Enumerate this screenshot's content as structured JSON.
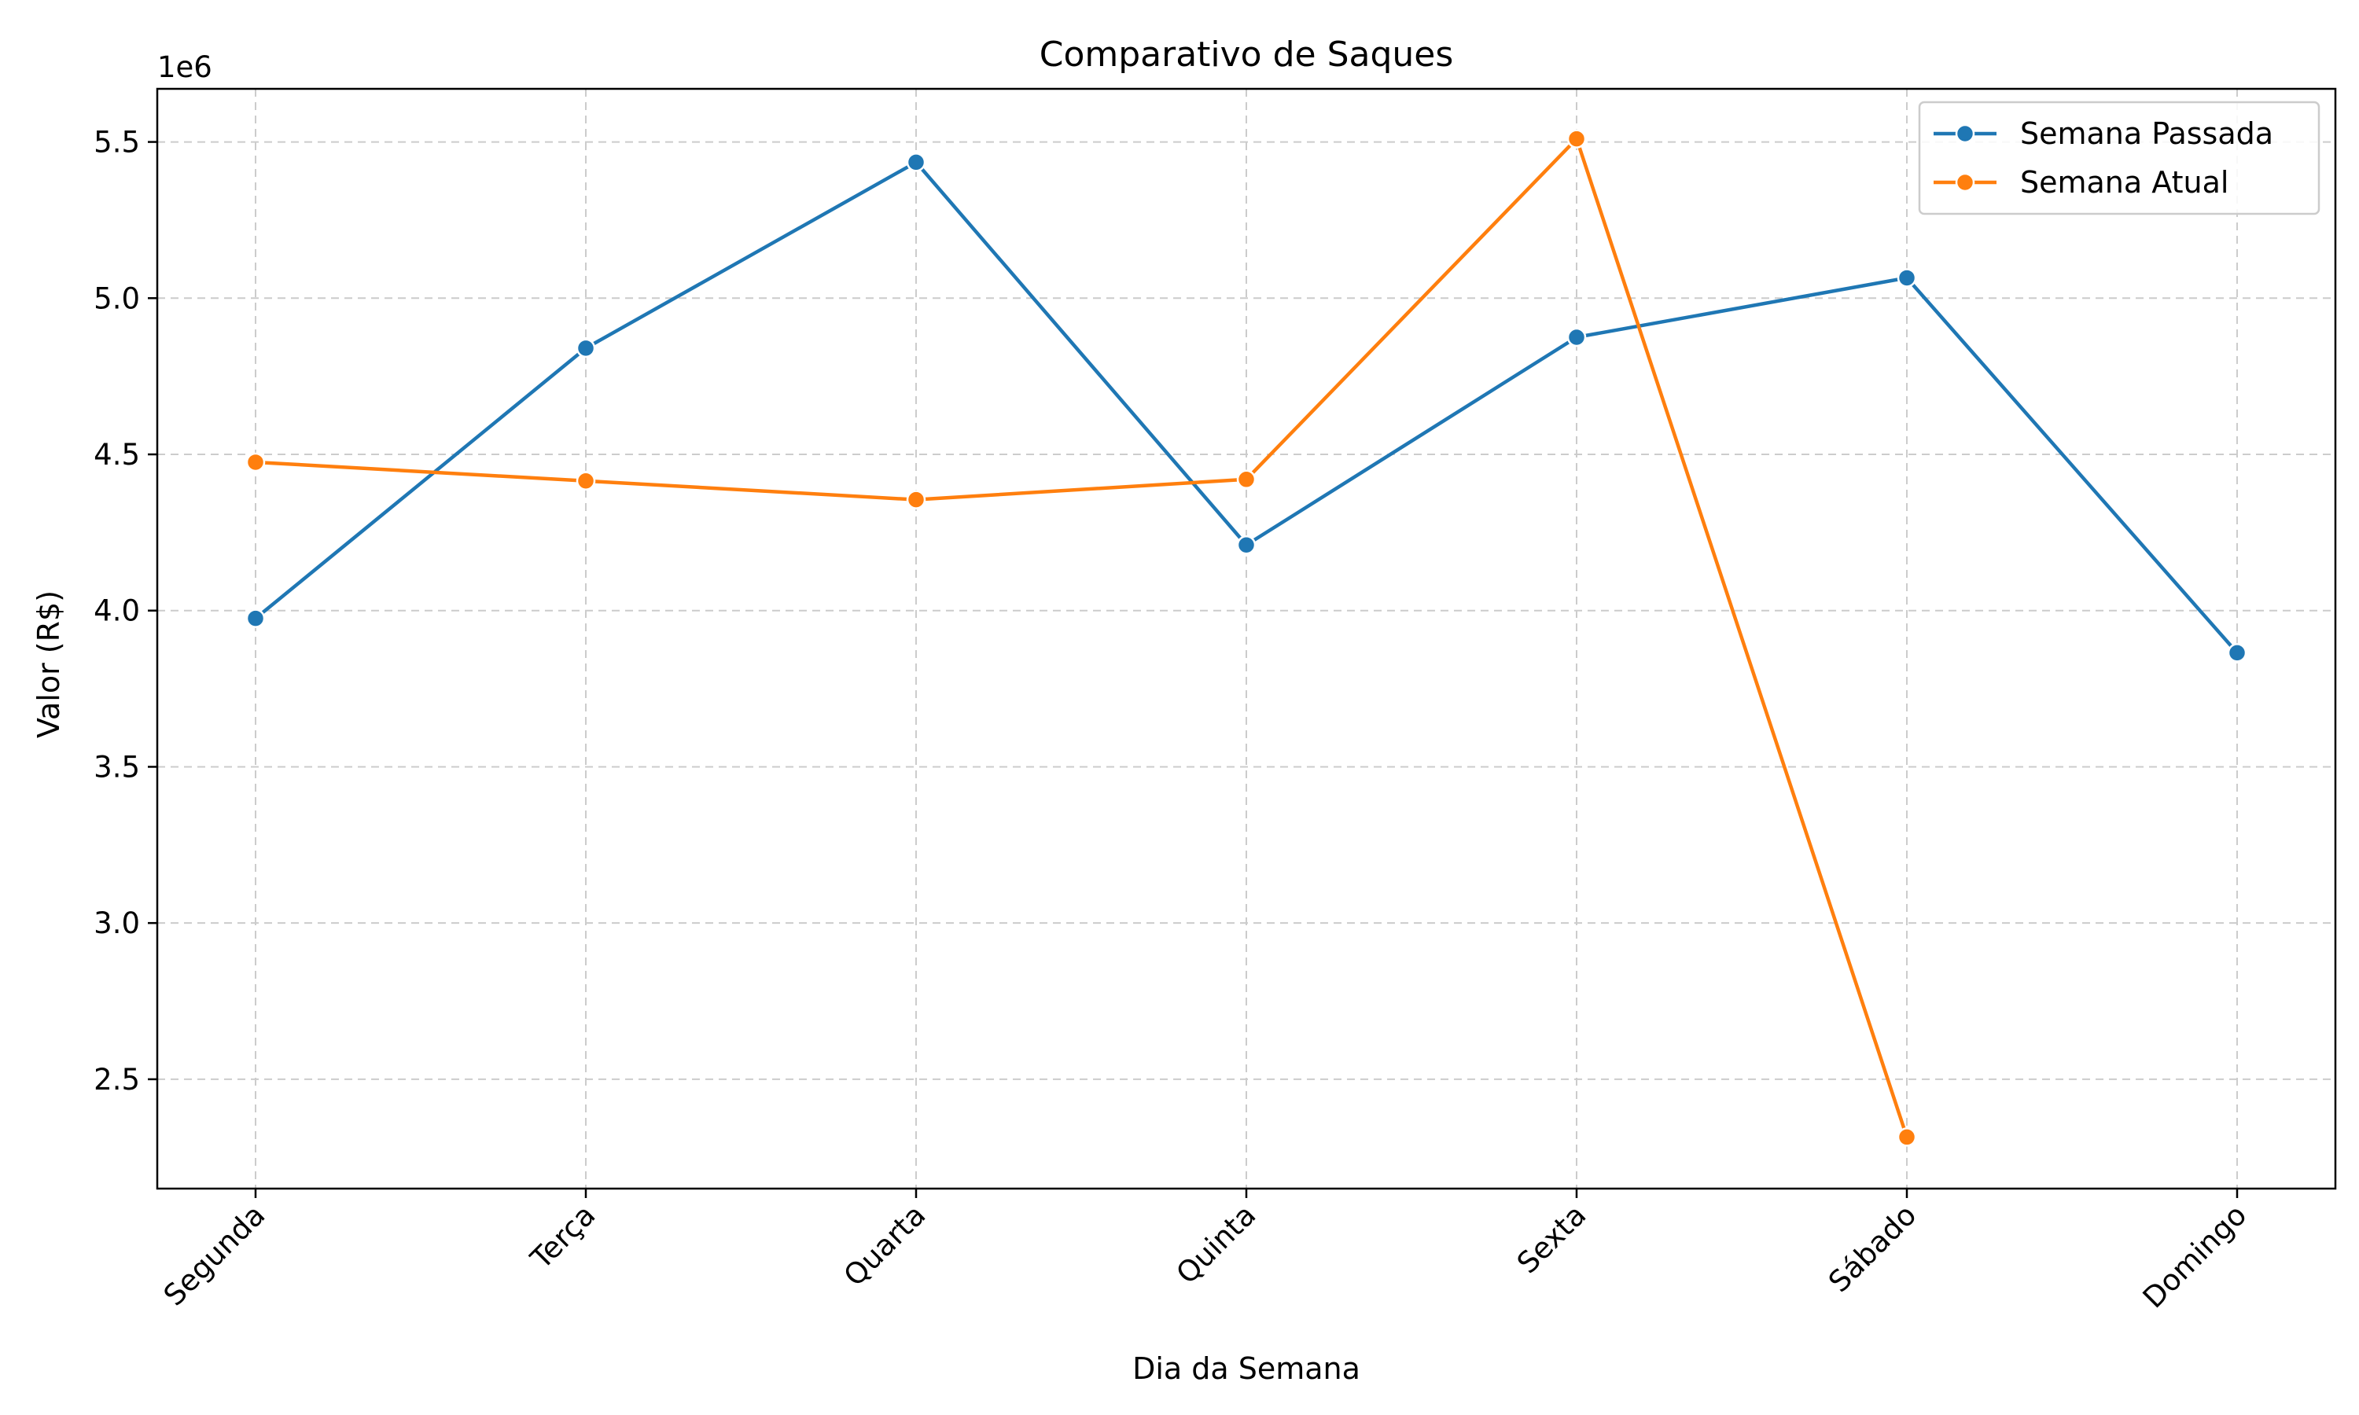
{
  "chart_data": {
    "type": "line",
    "title": "Comparativo de Saques",
    "xlabel": "Dia da Semana",
    "ylabel": "Valor (R$)",
    "y_offset_label": "1e6",
    "y_scale_factor": 1000000,
    "categories": [
      "Segunda",
      "Terça",
      "Quarta",
      "Quinta",
      "Sexta",
      "Sábado",
      "Domingo"
    ],
    "series": [
      {
        "name": "Semana Passada",
        "color": "#1f77b4",
        "values": [
          3975000,
          4840000,
          5435000,
          4210000,
          4875000,
          5065000,
          3865000
        ]
      },
      {
        "name": "Semana Atual",
        "color": "#ff7f0e",
        "values": [
          4475000,
          4415000,
          4355000,
          4420000,
          5510000,
          2315000,
          null
        ]
      }
    ],
    "ylim": [
      2150000,
      5670000
    ],
    "yticks": [
      2500000,
      3000000,
      3500000,
      4000000,
      4500000,
      5000000,
      5500000
    ],
    "ytick_labels": [
      "2.5",
      "3.0",
      "3.5",
      "4.0",
      "4.5",
      "5.0",
      "5.5"
    ],
    "grid": true,
    "legend_position": "top-right"
  }
}
